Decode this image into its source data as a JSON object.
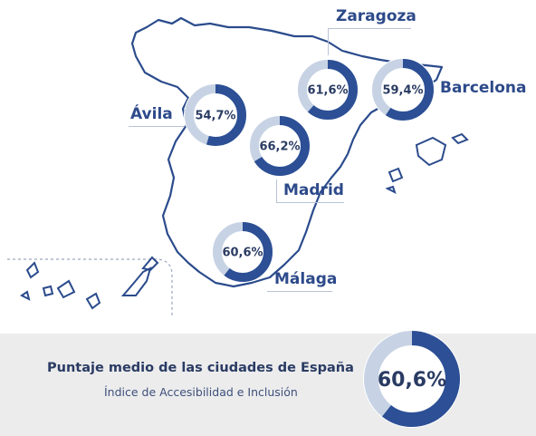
{
  "cities": [
    {
      "name": "Zaragoza",
      "value_label": "61,6%",
      "value": 61.6
    },
    {
      "name": "Barcelona",
      "value_label": "59,4%",
      "value": 59.4
    },
    {
      "name": "Ávila",
      "value_label": "54,7%",
      "value": 54.7
    },
    {
      "name": "Madrid",
      "value_label": "66,2%",
      "value": 66.2
    },
    {
      "name": "Málaga",
      "value_label": "60,6%",
      "value": 60.6
    }
  ],
  "summary": {
    "title": "Puntaje medio de las ciudades de España",
    "subtitle": "Índice de Accesibilidad e Inclusión",
    "value_label": "60,6%",
    "value": 60.6
  },
  "colors": {
    "ring_fill": "#2c4f95",
    "ring_track": "#c7d3e4",
    "outline": "#2b4b8c",
    "label": "#2d4a8a",
    "footer_bg": "#ececed"
  }
}
